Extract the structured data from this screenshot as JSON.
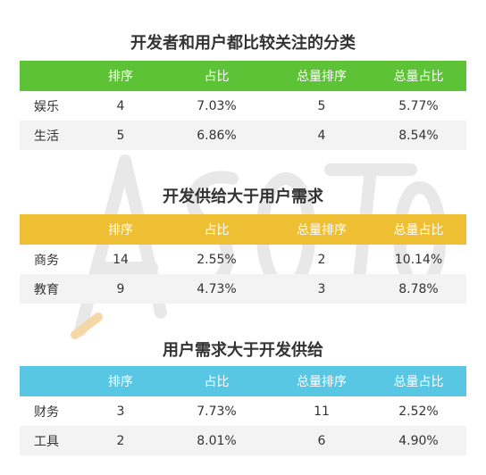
{
  "colors": {
    "green": "#5ec236",
    "yellow": "#efbf33",
    "blue": "#58c7e3"
  },
  "tables": [
    {
      "title": "开发者和用户都比较关注的分类",
      "color": "#5ec236",
      "headers": [
        "",
        "排序",
        "占比",
        "总量排序",
        "总量占比"
      ],
      "rows": [
        [
          "娱乐",
          "4",
          "7.03%",
          "5",
          "5.77%"
        ],
        [
          "生活",
          "5",
          "6.86%",
          "4",
          "8.54%"
        ]
      ]
    },
    {
      "title": "开发供给大于用户需求",
      "color": "#efbf33",
      "headers": [
        "",
        "排序",
        "占比",
        "总量排序",
        "总量占比"
      ],
      "rows": [
        [
          "商务",
          "14",
          "2.55%",
          "2",
          "10.14%"
        ],
        [
          "教育",
          "9",
          "4.73%",
          "3",
          "8.78%"
        ]
      ]
    },
    {
      "title": "用户需求大于开发供给",
      "color": "#58c7e3",
      "headers": [
        "",
        "排序",
        "占比",
        "总量排序",
        "总量占比"
      ],
      "rows": [
        [
          "财务",
          "3",
          "7.73%",
          "11",
          "2.52%"
        ],
        [
          "工具",
          "2",
          "8.01%",
          "6",
          "4.90%"
        ]
      ]
    }
  ]
}
